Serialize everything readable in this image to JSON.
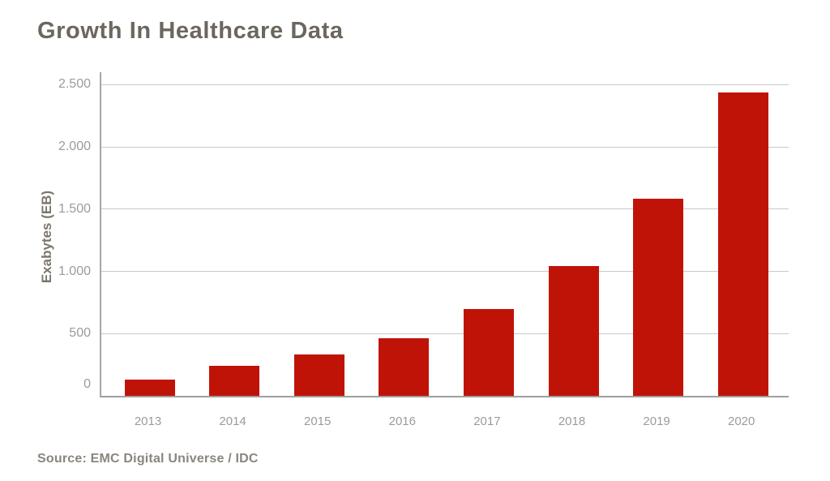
{
  "title": "Growth In Healthcare Data",
  "source": "Source: EMC Digital Universe / IDC",
  "colors": {
    "background": "#ffffff",
    "bar": "#c01308",
    "title_text": "#6b675f",
    "axis_line": "#a6a6a6",
    "baseline": "#9f9f9f",
    "gridline": "#c9c9c9",
    "tick_text": "#9b9b9b",
    "y_axis_title_text": "#7b766e",
    "source_text": "#8a867e"
  },
  "chart_data": {
    "type": "bar",
    "title": "Growth In Healthcare Data",
    "categories": [
      "2013",
      "2014",
      "2015",
      "2016",
      "2017",
      "2018",
      "2019",
      "2020"
    ],
    "values": [
      130,
      240,
      330,
      465,
      695,
      1040,
      1585,
      2435
    ],
    "xlabel": "",
    "ylabel": "Exabytes (EB)",
    "ylim": [
      0,
      2600
    ],
    "yticks": [
      0,
      500,
      1000,
      1500,
      2000,
      2500
    ],
    "ytick_labels": [
      "0",
      "500",
      "1.000",
      "1.500",
      "2.000",
      "2.500"
    ],
    "grid": true,
    "legend": "none",
    "bar_color": "#c01308",
    "source": "Source: EMC Digital Universe / IDC"
  }
}
